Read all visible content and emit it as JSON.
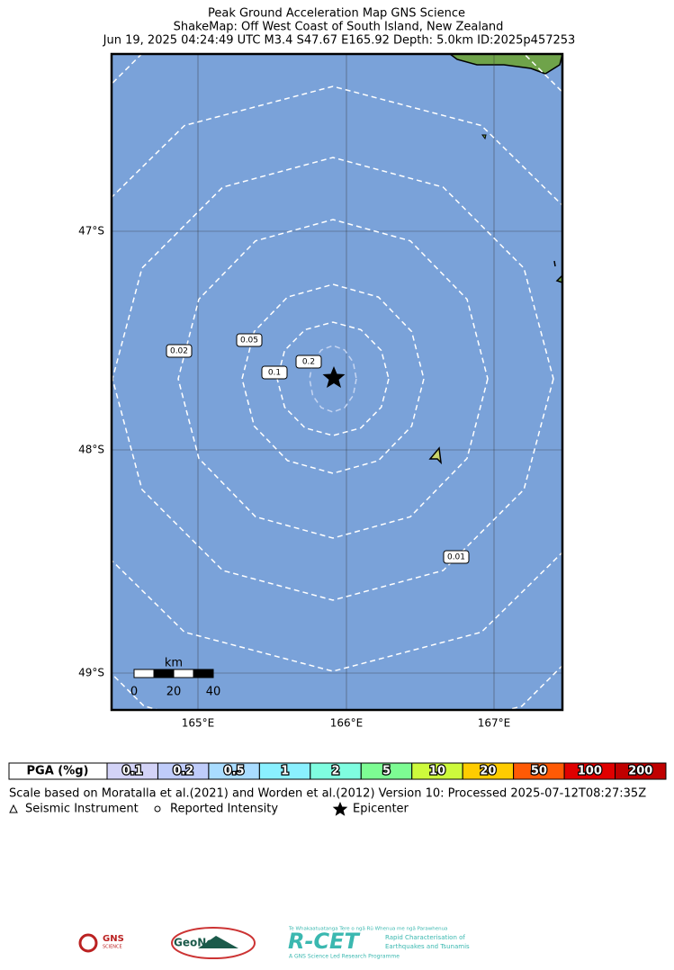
{
  "header": {
    "title": "Peak Ground Acceleration Map GNS Science",
    "subtitle": "ShakeMap: Off West Coast of South Island, New Zealand",
    "event": "Jun 19, 2025 04:24:49 UTC M3.4 S47.67 E165.92 Depth: 5.0km ID:2025p457253"
  },
  "map": {
    "lat_labels": [
      "47°S",
      "48°S",
      "49°S"
    ],
    "lon_labels": [
      "165°E",
      "166°E",
      "167°E"
    ],
    "contour_labels": [
      "0.02",
      "0.05",
      "0.1",
      "0.2",
      "0.01"
    ],
    "scale_bar": {
      "unit": "km",
      "ticks": [
        "0",
        "20",
        "40"
      ]
    }
  },
  "legend": {
    "label": "PGA (%g)",
    "levels": [
      {
        "label": "0.1",
        "color": "#d3d3f7"
      },
      {
        "label": "0.2",
        "color": "#bfccfa"
      },
      {
        "label": "0.5",
        "color": "#a9dcff"
      },
      {
        "label": "1",
        "color": "#8af0ff"
      },
      {
        "label": "2",
        "color": "#7ffde0"
      },
      {
        "label": "5",
        "color": "#7dfc93"
      },
      {
        "label": "10",
        "color": "#cdfa3c"
      },
      {
        "label": "20",
        "color": "#ffcc00"
      },
      {
        "label": "50",
        "color": "#ff5a05"
      },
      {
        "label": "100",
        "color": "#e00000"
      },
      {
        "label": "200",
        "color": "#c00000"
      }
    ]
  },
  "footer": {
    "note": "Scale based on Moratalla et al.(2021) and Worden et al.(2012) Version 10: Processed 2025-07-12T08:27:35Z",
    "symbols": [
      "Seismic Instrument",
      "Reported Intensity",
      "Epicenter"
    ]
  },
  "logos": {
    "gns": "GNS",
    "gns_sub": "SCIENCE",
    "geonet": "GeoNet",
    "rcet": "R-CET",
    "rcet_tag": "Te Whakaatuatanga Tere o ngā Rū Whenua me ngā Parawhenua",
    "rcet_desc1": "Rapid Characterisation of",
    "rcet_desc2": "Earthquakes and Tsunamis",
    "rcet_foot": "A GNS Science Led Research Programme"
  }
}
